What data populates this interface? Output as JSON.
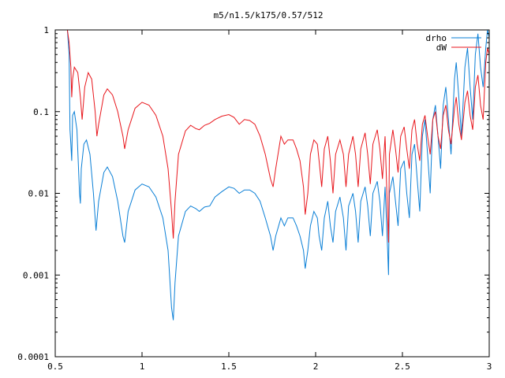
{
  "chart_data": {
    "type": "line",
    "title": "m5/n1.5/k175/0.57/512",
    "xlabel": "",
    "ylabel": "",
    "xlim": [
      0.5,
      3
    ],
    "ylim": [
      0.0001,
      1
    ],
    "yscale": "log",
    "grid": false,
    "legend_position": "top-right",
    "x_ticks": [
      {
        "value": 0.5,
        "label": "0.5"
      },
      {
        "value": 1,
        "label": "1"
      },
      {
        "value": 1.5,
        "label": "1.5"
      },
      {
        "value": 2,
        "label": "2"
      },
      {
        "value": 2.5,
        "label": "2.5"
      },
      {
        "value": 3,
        "label": "3"
      }
    ],
    "y_ticks": [
      {
        "value": 1,
        "label": "1"
      },
      {
        "value": 0.1,
        "label": "0.1"
      },
      {
        "value": 0.01,
        "label": "0.01"
      },
      {
        "value": 0.001,
        "label": "0.001"
      },
      {
        "value": 0.0001,
        "label": "0.0001"
      }
    ],
    "series": [
      {
        "name": "drho",
        "color": "#0a7fd6",
        "points": [
          [
            0.57,
            1.0
          ],
          [
            0.58,
            0.5
          ],
          [
            0.585,
            0.06
          ],
          [
            0.59,
            0.04
          ],
          [
            0.595,
            0.025
          ],
          [
            0.6,
            0.09
          ],
          [
            0.61,
            0.1
          ],
          [
            0.625,
            0.06
          ],
          [
            0.64,
            0.01
          ],
          [
            0.645,
            0.0075
          ],
          [
            0.65,
            0.02
          ],
          [
            0.665,
            0.04
          ],
          [
            0.68,
            0.045
          ],
          [
            0.7,
            0.03
          ],
          [
            0.72,
            0.01
          ],
          [
            0.735,
            0.0035
          ],
          [
            0.75,
            0.008
          ],
          [
            0.78,
            0.018
          ],
          [
            0.8,
            0.021
          ],
          [
            0.83,
            0.016
          ],
          [
            0.86,
            0.008
          ],
          [
            0.89,
            0.003
          ],
          [
            0.9,
            0.0025
          ],
          [
            0.92,
            0.006
          ],
          [
            0.96,
            0.011
          ],
          [
            1.0,
            0.013
          ],
          [
            1.04,
            0.012
          ],
          [
            1.08,
            0.009
          ],
          [
            1.12,
            0.005
          ],
          [
            1.15,
            0.002
          ],
          [
            1.17,
            0.0004
          ],
          [
            1.18,
            0.00028
          ],
          [
            1.19,
            0.0008
          ],
          [
            1.21,
            0.003
          ],
          [
            1.25,
            0.006
          ],
          [
            1.28,
            0.007
          ],
          [
            1.31,
            0.0065
          ],
          [
            1.33,
            0.006
          ],
          [
            1.36,
            0.0068
          ],
          [
            1.39,
            0.007
          ],
          [
            1.42,
            0.009
          ],
          [
            1.46,
            0.0105
          ],
          [
            1.5,
            0.012
          ],
          [
            1.53,
            0.0115
          ],
          [
            1.56,
            0.01
          ],
          [
            1.59,
            0.011
          ],
          [
            1.62,
            0.011
          ],
          [
            1.65,
            0.01
          ],
          [
            1.68,
            0.008
          ],
          [
            1.71,
            0.005
          ],
          [
            1.74,
            0.003
          ],
          [
            1.755,
            0.002
          ],
          [
            1.77,
            0.003
          ],
          [
            1.8,
            0.005
          ],
          [
            1.82,
            0.004
          ],
          [
            1.84,
            0.005
          ],
          [
            1.87,
            0.005
          ],
          [
            1.89,
            0.004
          ],
          [
            1.91,
            0.003
          ],
          [
            1.93,
            0.002
          ],
          [
            1.94,
            0.0012
          ],
          [
            1.955,
            0.002
          ],
          [
            1.97,
            0.004
          ],
          [
            1.99,
            0.006
          ],
          [
            2.01,
            0.005
          ],
          [
            2.02,
            0.003
          ],
          [
            2.035,
            0.002
          ],
          [
            2.05,
            0.005
          ],
          [
            2.07,
            0.008
          ],
          [
            2.085,
            0.004
          ],
          [
            2.1,
            0.0025
          ],
          [
            2.115,
            0.006
          ],
          [
            2.14,
            0.009
          ],
          [
            2.16,
            0.005
          ],
          [
            2.175,
            0.002
          ],
          [
            2.19,
            0.007
          ],
          [
            2.215,
            0.01
          ],
          [
            2.23,
            0.006
          ],
          [
            2.245,
            0.0025
          ],
          [
            2.26,
            0.008
          ],
          [
            2.285,
            0.012
          ],
          [
            2.3,
            0.007
          ],
          [
            2.315,
            0.003
          ],
          [
            2.33,
            0.01
          ],
          [
            2.355,
            0.014
          ],
          [
            2.37,
            0.008
          ],
          [
            2.385,
            0.003
          ],
          [
            2.4,
            0.012
          ],
          [
            2.415,
            0.002
          ],
          [
            2.42,
            0.001
          ],
          [
            2.425,
            0.01
          ],
          [
            2.445,
            0.016
          ],
          [
            2.46,
            0.008
          ],
          [
            2.475,
            0.004
          ],
          [
            2.49,
            0.02
          ],
          [
            2.51,
            0.025
          ],
          [
            2.525,
            0.01
          ],
          [
            2.54,
            0.005
          ],
          [
            2.555,
            0.03
          ],
          [
            2.57,
            0.04
          ],
          [
            2.585,
            0.015
          ],
          [
            2.6,
            0.006
          ],
          [
            2.615,
            0.05
          ],
          [
            2.63,
            0.08
          ],
          [
            2.645,
            0.03
          ],
          [
            2.66,
            0.01
          ],
          [
            2.675,
            0.08
          ],
          [
            2.69,
            0.12
          ],
          [
            2.705,
            0.05
          ],
          [
            2.72,
            0.02
          ],
          [
            2.735,
            0.12
          ],
          [
            2.75,
            0.2
          ],
          [
            2.765,
            0.08
          ],
          [
            2.78,
            0.03
          ],
          [
            2.8,
            0.25
          ],
          [
            2.81,
            0.4
          ],
          [
            2.825,
            0.15
          ],
          [
            2.84,
            0.05
          ],
          [
            2.86,
            0.35
          ],
          [
            2.875,
            0.6
          ],
          [
            2.89,
            0.2
          ],
          [
            2.905,
            0.08
          ],
          [
            2.92,
            0.5
          ],
          [
            2.935,
            0.9
          ],
          [
            2.95,
            0.35
          ],
          [
            2.965,
            0.2
          ],
          [
            2.98,
            0.6
          ],
          [
            2.99,
            1.0
          ],
          [
            3.0,
            0.8
          ]
        ]
      },
      {
        "name": "dW",
        "color": "#e8161c",
        "points": [
          [
            0.57,
            1.0
          ],
          [
            0.58,
            0.7
          ],
          [
            0.59,
            0.35
          ],
          [
            0.595,
            0.15
          ],
          [
            0.6,
            0.25
          ],
          [
            0.61,
            0.35
          ],
          [
            0.63,
            0.3
          ],
          [
            0.645,
            0.15
          ],
          [
            0.655,
            0.08
          ],
          [
            0.67,
            0.2
          ],
          [
            0.69,
            0.3
          ],
          [
            0.71,
            0.25
          ],
          [
            0.73,
            0.1
          ],
          [
            0.74,
            0.05
          ],
          [
            0.75,
            0.07
          ],
          [
            0.78,
            0.16
          ],
          [
            0.8,
            0.19
          ],
          [
            0.83,
            0.16
          ],
          [
            0.86,
            0.1
          ],
          [
            0.89,
            0.05
          ],
          [
            0.9,
            0.035
          ],
          [
            0.92,
            0.06
          ],
          [
            0.96,
            0.11
          ],
          [
            1.0,
            0.13
          ],
          [
            1.04,
            0.12
          ],
          [
            1.08,
            0.09
          ],
          [
            1.12,
            0.05
          ],
          [
            1.15,
            0.02
          ],
          [
            1.17,
            0.006
          ],
          [
            1.18,
            0.0028
          ],
          [
            1.19,
            0.008
          ],
          [
            1.21,
            0.03
          ],
          [
            1.25,
            0.058
          ],
          [
            1.28,
            0.068
          ],
          [
            1.31,
            0.062
          ],
          [
            1.33,
            0.06
          ],
          [
            1.36,
            0.068
          ],
          [
            1.39,
            0.072
          ],
          [
            1.42,
            0.08
          ],
          [
            1.46,
            0.088
          ],
          [
            1.5,
            0.092
          ],
          [
            1.53,
            0.085
          ],
          [
            1.56,
            0.07
          ],
          [
            1.59,
            0.08
          ],
          [
            1.62,
            0.078
          ],
          [
            1.65,
            0.07
          ],
          [
            1.68,
            0.05
          ],
          [
            1.71,
            0.03
          ],
          [
            1.74,
            0.015
          ],
          [
            1.755,
            0.012
          ],
          [
            1.77,
            0.02
          ],
          [
            1.8,
            0.05
          ],
          [
            1.82,
            0.04
          ],
          [
            1.84,
            0.045
          ],
          [
            1.87,
            0.045
          ],
          [
            1.89,
            0.035
          ],
          [
            1.91,
            0.025
          ],
          [
            1.93,
            0.012
          ],
          [
            1.94,
            0.0055
          ],
          [
            1.955,
            0.01
          ],
          [
            1.97,
            0.03
          ],
          [
            1.99,
            0.045
          ],
          [
            2.01,
            0.04
          ],
          [
            2.02,
            0.025
          ],
          [
            2.035,
            0.012
          ],
          [
            2.05,
            0.035
          ],
          [
            2.07,
            0.05
          ],
          [
            2.085,
            0.025
          ],
          [
            2.1,
            0.01
          ],
          [
            2.115,
            0.03
          ],
          [
            2.14,
            0.045
          ],
          [
            2.16,
            0.03
          ],
          [
            2.175,
            0.012
          ],
          [
            2.19,
            0.03
          ],
          [
            2.215,
            0.05
          ],
          [
            2.23,
            0.03
          ],
          [
            2.245,
            0.012
          ],
          [
            2.26,
            0.035
          ],
          [
            2.285,
            0.055
          ],
          [
            2.3,
            0.03
          ],
          [
            2.315,
            0.013
          ],
          [
            2.33,
            0.04
          ],
          [
            2.355,
            0.06
          ],
          [
            2.37,
            0.035
          ],
          [
            2.385,
            0.015
          ],
          [
            2.4,
            0.05
          ],
          [
            2.415,
            0.005
          ],
          [
            2.42,
            0.0025
          ],
          [
            2.425,
            0.03
          ],
          [
            2.445,
            0.06
          ],
          [
            2.46,
            0.035
          ],
          [
            2.475,
            0.018
          ],
          [
            2.49,
            0.05
          ],
          [
            2.51,
            0.065
          ],
          [
            2.525,
            0.035
          ],
          [
            2.54,
            0.02
          ],
          [
            2.555,
            0.06
          ],
          [
            2.57,
            0.08
          ],
          [
            2.585,
            0.04
          ],
          [
            2.6,
            0.025
          ],
          [
            2.615,
            0.07
          ],
          [
            2.63,
            0.09
          ],
          [
            2.645,
            0.05
          ],
          [
            2.66,
            0.03
          ],
          [
            2.675,
            0.08
          ],
          [
            2.69,
            0.1
          ],
          [
            2.705,
            0.05
          ],
          [
            2.72,
            0.035
          ],
          [
            2.735,
            0.09
          ],
          [
            2.75,
            0.12
          ],
          [
            2.765,
            0.06
          ],
          [
            2.78,
            0.04
          ],
          [
            2.8,
            0.11
          ],
          [
            2.81,
            0.15
          ],
          [
            2.825,
            0.07
          ],
          [
            2.84,
            0.045
          ],
          [
            2.86,
            0.13
          ],
          [
            2.875,
            0.18
          ],
          [
            2.89,
            0.09
          ],
          [
            2.905,
            0.06
          ],
          [
            2.92,
            0.2
          ],
          [
            2.935,
            0.28
          ],
          [
            2.95,
            0.12
          ],
          [
            2.965,
            0.08
          ],
          [
            2.98,
            0.4
          ],
          [
            2.99,
            0.6
          ],
          [
            3.0,
            0.5
          ]
        ]
      }
    ]
  }
}
